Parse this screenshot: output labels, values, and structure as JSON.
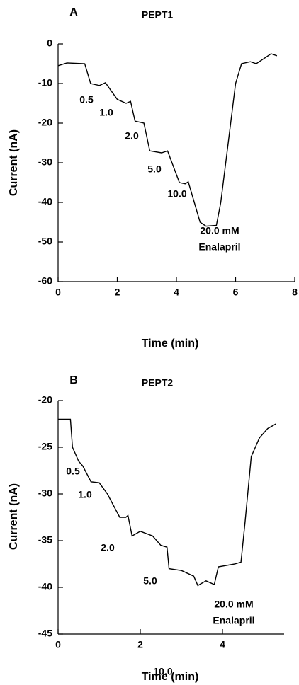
{
  "chart_data": [
    {
      "type": "line",
      "panel": "A",
      "title": "PEPT1",
      "xlabel": "Time (min)",
      "ylabel": "Current (nA)",
      "xlim": [
        0,
        8
      ],
      "ylim": [
        -60,
        0
      ],
      "xticks": [
        0,
        2,
        4,
        6,
        8
      ],
      "yticks": [
        0,
        -10,
        -20,
        -30,
        -40,
        -50,
        -60
      ],
      "color": "#000000",
      "x": [
        0,
        0.3,
        0.9,
        1.1,
        1.4,
        1.6,
        2.0,
        2.3,
        2.45,
        2.6,
        2.9,
        3.1,
        3.5,
        3.7,
        4.1,
        4.3,
        4.4,
        4.8,
        5.0,
        5.35,
        5.5,
        5.75,
        6.0,
        6.2,
        6.5,
        6.7,
        7.0,
        7.2,
        7.4
      ],
      "values": [
        -5.5,
        -4.8,
        -5,
        -10,
        -10.5,
        -9.8,
        -14,
        -15,
        -14.5,
        -19.5,
        -20,
        -27,
        -27.5,
        -27,
        -35,
        -35.3,
        -34.8,
        -45,
        -46,
        -45.8,
        -40,
        -25,
        -10,
        -5,
        -4.5,
        -5,
        -3.5,
        -2.5,
        -3
      ],
      "annotations": [
        "0.5",
        "1.0",
        "2.0",
        "5.0",
        "10.0",
        "20.0 mM",
        "Enalapril"
      ]
    },
    {
      "type": "line",
      "panel": "B",
      "title": "PEPT2",
      "xlabel": "Time (min)",
      "ylabel": "Current (nA)",
      "xlim": [
        0,
        5.5
      ],
      "ylim": [
        -45,
        -20
      ],
      "xticks": [
        0,
        2,
        4
      ],
      "yticks": [
        -20,
        -25,
        -30,
        -35,
        -40,
        -45
      ],
      "color": "#000000",
      "x": [
        0,
        0.3,
        0.35,
        0.5,
        0.6,
        0.8,
        1.0,
        1.2,
        1.5,
        1.65,
        1.7,
        1.8,
        2.0,
        2.3,
        2.5,
        2.65,
        2.7,
        3.0,
        3.3,
        3.4,
        3.6,
        3.8,
        3.9,
        4.3,
        4.45,
        4.55,
        4.7,
        4.9,
        5.1,
        5.3
      ],
      "values": [
        -22,
        -22,
        -25,
        -26.5,
        -27,
        -28.7,
        -28.8,
        -30,
        -32.5,
        -32.5,
        -32.3,
        -34.5,
        -34,
        -34.5,
        -35.5,
        -35.7,
        -38,
        -38.2,
        -38.8,
        -39.8,
        -39.3,
        -39.7,
        -37.8,
        -37.5,
        -37.3,
        -33,
        -26,
        -24,
        -23,
        -22.5
      ],
      "annotations": [
        "0.5",
        "1.0",
        "2.0",
        "5.0",
        "20.0 mM",
        "Enalapril",
        "10.0"
      ]
    }
  ]
}
